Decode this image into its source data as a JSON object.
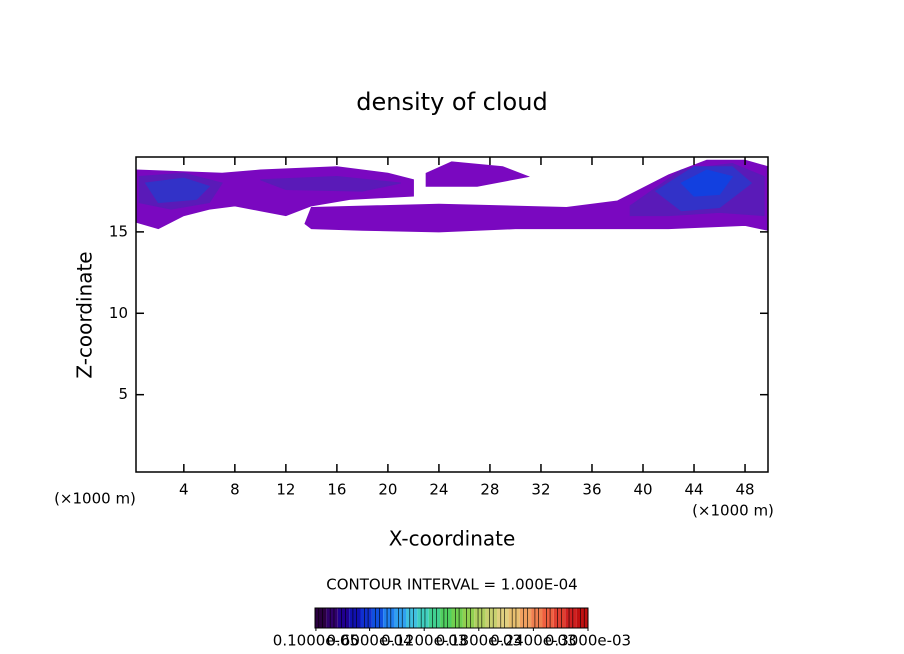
{
  "chart_data": {
    "type": "contour",
    "title": "density of cloud",
    "xlabel": "X-coordinate",
    "ylabel": "Z-coordinate",
    "xunit": "(×1000 m)",
    "yunit": "(×1000 m)",
    "interval_note": "CONTOUR INTERVAL = 1.000E-04",
    "xlim": [
      0.25,
      49.8
    ],
    "ylim": [
      0.25,
      19.6
    ],
    "xticks": [
      4,
      8,
      12,
      16,
      20,
      24,
      28,
      32,
      36,
      40,
      44,
      48
    ],
    "yticks": [
      5,
      10,
      15
    ],
    "contours": [
      {
        "color": "#7a08c0",
        "x": [
          0.25,
          7,
          10,
          16,
          20,
          22,
          22,
          17,
          14,
          12,
          10,
          8,
          6,
          4,
          2,
          0.25
        ],
        "z": [
          18.8,
          18.6,
          18.8,
          19.0,
          18.6,
          18.2,
          17.2,
          17.0,
          16.6,
          16.0,
          16.3,
          16.6,
          16.4,
          16.0,
          15.2,
          15.6
        ]
      },
      {
        "color": "#7a08c0",
        "x": [
          23,
          25,
          29,
          31,
          27,
          23
        ],
        "z": [
          18.6,
          19.3,
          19.0,
          18.4,
          17.8,
          17.8
        ]
      },
      {
        "color": "#7a08c0",
        "x": [
          14,
          24,
          34,
          38,
          42,
          45,
          48,
          49.8,
          49.8,
          48,
          42,
          38,
          30,
          24,
          18,
          14,
          13.5
        ],
        "z": [
          16.5,
          16.7,
          16.5,
          16.9,
          18.5,
          19.4,
          19.4,
          19.0,
          15.1,
          15.4,
          15.2,
          15.2,
          15.2,
          15.0,
          15.1,
          15.2,
          15.5
        ]
      },
      {
        "color": "#5a1ab8",
        "x": [
          0.5,
          4,
          7,
          6,
          3,
          0.5
        ],
        "z": [
          18.4,
          18.6,
          18.0,
          16.8,
          16.4,
          16.8
        ]
      },
      {
        "color": "#5a1ab8",
        "x": [
          39,
          43,
          47,
          49.5,
          49.5,
          46,
          42,
          39
        ],
        "z": [
          16.6,
          18.8,
          19.2,
          18.4,
          16.0,
          16.2,
          16.0,
          16.0
        ]
      },
      {
        "color": "#5a1ab8",
        "x": [
          10,
          16,
          21,
          18,
          12
        ],
        "z": [
          18.2,
          18.4,
          18.0,
          17.5,
          17.6
        ]
      },
      {
        "color": "#3232c8",
        "x": [
          1,
          4,
          6,
          5,
          2
        ],
        "z": [
          18.0,
          18.3,
          17.8,
          17.0,
          16.8
        ]
      },
      {
        "color": "#3232c8",
        "x": [
          41,
          44,
          47,
          48.5,
          46,
          43
        ],
        "z": [
          17.5,
          19.0,
          19.0,
          18.0,
          16.5,
          16.3
        ]
      },
      {
        "color": "#1240e0",
        "x": [
          43,
          45,
          47,
          46,
          44
        ],
        "z": [
          18.0,
          18.8,
          18.4,
          17.3,
          17.2
        ]
      }
    ],
    "colorbar": {
      "lim": [
        0,
        0.0003
      ],
      "colors": [
        "#2a0040",
        "#30006a",
        "#200090",
        "#1010b0",
        "#1030d0",
        "#1050e0",
        "#2080f0",
        "#30a0f0",
        "#40c0e0",
        "#40d0c0",
        "#40d090",
        "#50d060",
        "#70d050",
        "#90d050",
        "#b0d060",
        "#c8d070",
        "#e0d080",
        "#e8c070",
        "#f0a060",
        "#f08050",
        "#f06040",
        "#e04030",
        "#d02020",
        "#c01010"
      ],
      "ticks": [
        {
          "value": 1e-06,
          "label": "0.1000e-05"
        },
        {
          "value": 6e-05,
          "label": "0.6000e-04"
        },
        {
          "value": 0.00012,
          "label": "0.1200e-03"
        },
        {
          "value": 0.00018,
          "label": "0.1800e-03"
        },
        {
          "value": 0.00024,
          "label": "0.2400e-03"
        },
        {
          "value": 0.0003,
          "label": "0.3000e-03"
        }
      ]
    }
  }
}
